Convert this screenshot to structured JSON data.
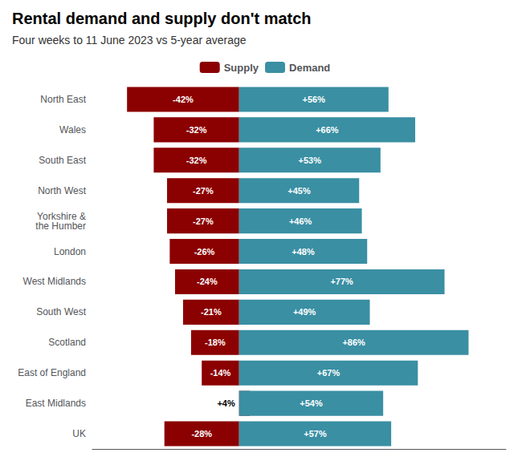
{
  "chart_data": {
    "type": "bar",
    "orientation": "horizontal",
    "title": "Rental demand and supply don't match",
    "subtitle": "Four weeks to 11 June 2023 vs 5-year average",
    "categories": [
      "North East",
      "Wales",
      "South East",
      "North West",
      "Yorkshire &\nthe Humber",
      "London",
      "West Midlands",
      "South West",
      "Scotland",
      "East of England",
      "East Midlands",
      "UK"
    ],
    "series": [
      {
        "name": "Supply",
        "color": "#8B0000",
        "values": [
          -42,
          -32,
          -32,
          -27,
          -27,
          -26,
          -24,
          -21,
          -18,
          -14,
          4,
          -28
        ],
        "value_labels": [
          "-42%",
          "-32%",
          "-32%",
          "-27%",
          "-27%",
          "-26%",
          "-24%",
          "-21%",
          "-18%",
          "-14%",
          "+4%",
          "-28%"
        ]
      },
      {
        "name": "Demand",
        "color": "#3A8FA3",
        "values": [
          56,
          66,
          53,
          45,
          46,
          48,
          77,
          49,
          86,
          67,
          54,
          57
        ],
        "value_labels": [
          "+56%",
          "+66%",
          "+53%",
          "+45%",
          "+46%",
          "+48%",
          "+77%",
          "+49%",
          "+86%",
          "+67%",
          "+54%",
          "+57%"
        ]
      }
    ],
    "xlim": [
      -55,
      100
    ],
    "xticks": [],
    "tick_labels": "y",
    "grid": false,
    "legend": "top",
    "data_labels": true
  }
}
